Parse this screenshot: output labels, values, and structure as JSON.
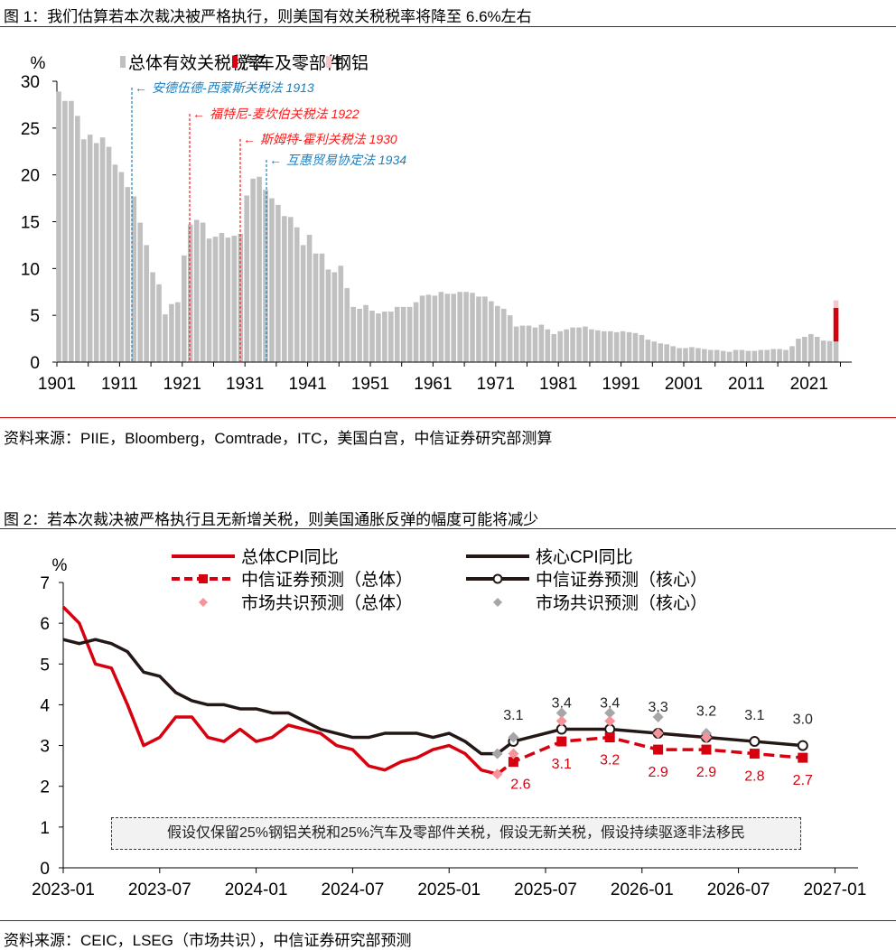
{
  "figure1": {
    "title": "图 1：我们估算若本次裁决被严格执行，则美国有效关税税率将降至 6.6%左右",
    "source": "资料来源：PIIE，Bloomberg，Comtrade，ITC，美国白宫，中信证券研究部测算"
  },
  "figure2": {
    "title": "图 2：若本次裁决被严格执行且无新增关税，则美国通胀反弹的幅度可能将减少",
    "source": "资料来源：CEIC，LSEG（市场共识），中信证券研究部预测",
    "note": "假设仅保留25%钢铝关税和25%汽车及零部件关税，假设无新关税，假设持续驱逐非法移民"
  },
  "chart_data": [
    {
      "type": "bar",
      "stacked": true,
      "ylabel": "%",
      "ylim": [
        0,
        30
      ],
      "yticks": [
        0,
        5,
        10,
        15,
        20,
        25,
        30
      ],
      "xtick_labels": [
        "1901",
        "1911",
        "1921",
        "1931",
        "1941",
        "1951",
        "1961",
        "1971",
        "1981",
        "1991",
        "2001",
        "2011",
        "2021"
      ],
      "x_start": 1901,
      "legend": "top",
      "colors": {
        "overall": "#c0c0c0",
        "auto": "#d7000f",
        "steel": "#f8c6c9"
      },
      "series": [
        {
          "name": "总体有效关税税率",
          "values": [
            28.9,
            27.9,
            27.9,
            26.3,
            23.8,
            24.3,
            23.4,
            24.0,
            23.0,
            21.1,
            20.3,
            18.7,
            17.7,
            14.9,
            12.5,
            9.6,
            8.3,
            5.1,
            6.2,
            6.4,
            11.4,
            14.7,
            15.2,
            14.9,
            13.2,
            13.4,
            13.8,
            13.3,
            13.5,
            13.7,
            17.8,
            19.6,
            19.8,
            18.4,
            17.5,
            16.8,
            15.6,
            15.5,
            14.4,
            12.5,
            13.6,
            11.6,
            11.6,
            9.9,
            9.6,
            10.3,
            7.9,
            5.9,
            5.7,
            6.1,
            5.5,
            5.2,
            5.4,
            5.4,
            5.9,
            5.9,
            5.9,
            6.4,
            7.1,
            7.2,
            7.1,
            7.5,
            7.3,
            7.3,
            7.5,
            7.5,
            7.4,
            7.0,
            7.0,
            6.5,
            6.0,
            5.7,
            5.0,
            3.8,
            3.9,
            3.9,
            3.7,
            4.0,
            3.5,
            3.0,
            3.3,
            3.5,
            3.7,
            3.7,
            3.8,
            3.5,
            3.4,
            3.3,
            3.3,
            3.2,
            3.3,
            3.2,
            3.1,
            2.9,
            2.4,
            2.2,
            2.0,
            1.9,
            1.7,
            1.5,
            1.5,
            1.6,
            1.5,
            1.4,
            1.3,
            1.3,
            1.2,
            1.1,
            1.3,
            1.3,
            1.2,
            1.2,
            1.3,
            1.3,
            1.4,
            1.4,
            1.3,
            1.7,
            2.5,
            2.7,
            3.0,
            2.7,
            2.3,
            2.25,
            2.2
          ]
        },
        {
          "name": "汽车及零部件",
          "year": 2025,
          "value": 3.6
        },
        {
          "name": "钢铝",
          "year": 2025,
          "value": 0.8
        }
      ],
      "annotations": [
        {
          "label": "安德伍德-西蒙斯关税法 1913",
          "year": 1913,
          "color": "#1a7fc1"
        },
        {
          "label": "福特尼-麦坎伯关税法 1922",
          "year": 1922,
          "color": "#ff1a1a"
        },
        {
          "label": "斯姆特-霍利关税法 1930",
          "year": 1930,
          "color": "#ff1a1a"
        },
        {
          "label": "互惠贸易协定法 1934",
          "year": 1934,
          "color": "#1a7fc1"
        }
      ]
    },
    {
      "type": "line",
      "ylabel": "%",
      "ylim": [
        0,
        7
      ],
      "yticks": [
        0,
        1,
        2,
        3,
        4,
        5,
        6,
        7
      ],
      "xlim": [
        "2023-01",
        "2027-01"
      ],
      "xtick_labels": [
        "2023-01",
        "2023-07",
        "2024-01",
        "2024-07",
        "2025-01",
        "2025-07",
        "2026-01",
        "2026-07",
        "2027-01"
      ],
      "legend": "top",
      "colors": {
        "headline": "#d7000f",
        "core": "#231816",
        "consensus_headline": "#f4949b",
        "consensus_core": "#a6a6a6"
      },
      "series": [
        {
          "name": "总体CPI同比",
          "start": "2023-01",
          "values": [
            6.4,
            6.0,
            5.0,
            4.9,
            4.0,
            3.0,
            3.2,
            3.7,
            3.7,
            3.2,
            3.1,
            3.4,
            3.1,
            3.2,
            3.5,
            3.4,
            3.3,
            3.0,
            2.9,
            2.5,
            2.4,
            2.6,
            2.7,
            2.9,
            3.0,
            2.8,
            2.4,
            2.3
          ]
        },
        {
          "name": "核心CPI同比",
          "start": "2023-01",
          "values": [
            5.6,
            5.5,
            5.6,
            5.5,
            5.3,
            4.8,
            4.7,
            4.3,
            4.1,
            4.0,
            4.0,
            3.9,
            3.9,
            3.8,
            3.8,
            3.6,
            3.4,
            3.3,
            3.2,
            3.2,
            3.3,
            3.3,
            3.3,
            3.2,
            3.3,
            3.1,
            2.8,
            2.8
          ]
        },
        {
          "name": "中信证券预测（总体）",
          "x": [
            "2025-04",
            "2025-05",
            "2025-08",
            "2025-11",
            "2026-02",
            "2026-05",
            "2026-08",
            "2026-11"
          ],
          "values": [
            2.3,
            2.6,
            3.1,
            3.2,
            2.9,
            2.9,
            2.8,
            2.7
          ],
          "labels": [
            "",
            "2.6",
            "3.1",
            "3.2",
            "2.9",
            "2.9",
            "2.8",
            "2.7"
          ]
        },
        {
          "name": "中信证券预测（核心）",
          "x": [
            "2025-04",
            "2025-05",
            "2025-08",
            "2025-11",
            "2026-02",
            "2026-05",
            "2026-08",
            "2026-11"
          ],
          "values": [
            2.8,
            3.1,
            3.4,
            3.4,
            3.3,
            3.2,
            3.1,
            3.0
          ],
          "labels": [
            "",
            "3.1",
            "3.4",
            "3.4",
            "3.3",
            "3.2",
            "3.1",
            "3.0"
          ]
        },
        {
          "name": "市场共识预测（总体）",
          "x": [
            "2025-04",
            "2025-05",
            "2025-08",
            "2025-11",
            "2026-02",
            "2026-05"
          ],
          "values": [
            2.3,
            2.8,
            3.6,
            3.6,
            3.3,
            3.2
          ]
        },
        {
          "name": "市场共识预测（核心）",
          "x": [
            "2025-04",
            "2025-05",
            "2025-08",
            "2025-11",
            "2026-02",
            "2026-05"
          ],
          "values": [
            2.8,
            3.2,
            3.8,
            3.8,
            3.7,
            3.3
          ]
        }
      ]
    }
  ]
}
